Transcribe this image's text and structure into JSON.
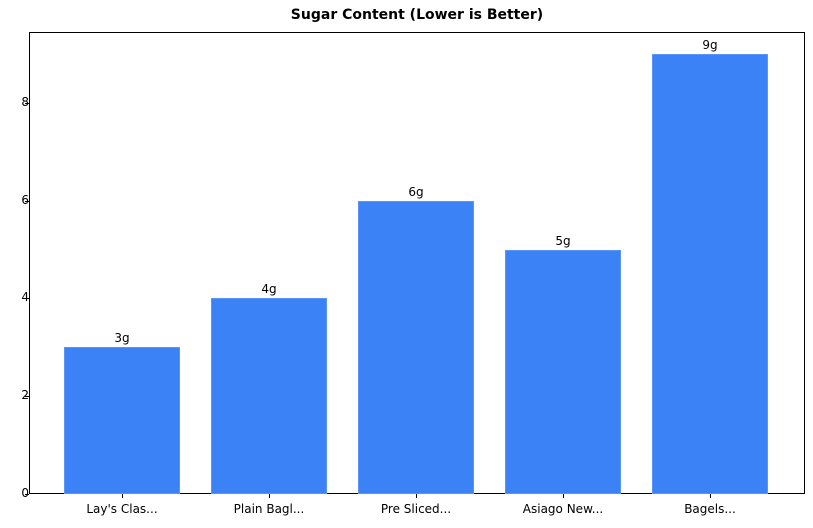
{
  "chart_data": {
    "type": "bar",
    "title": "Sugar Content (Lower is Better)",
    "xlabel": "",
    "ylabel": "",
    "categories": [
      "Lay's Clas...",
      "Plain Bagl...",
      "Pre Sliced...",
      "Asiago New...",
      "Bagels..."
    ],
    "values": [
      3,
      4,
      6,
      5,
      9
    ],
    "data_labels": [
      "3g",
      "4g",
      "6g",
      "5g",
      "9g"
    ],
    "ylim": [
      0,
      9.45
    ],
    "yticks": [
      0,
      2,
      4,
      6,
      8
    ],
    "grid": false,
    "legend": null,
    "bar_color": "#3b82f6"
  }
}
